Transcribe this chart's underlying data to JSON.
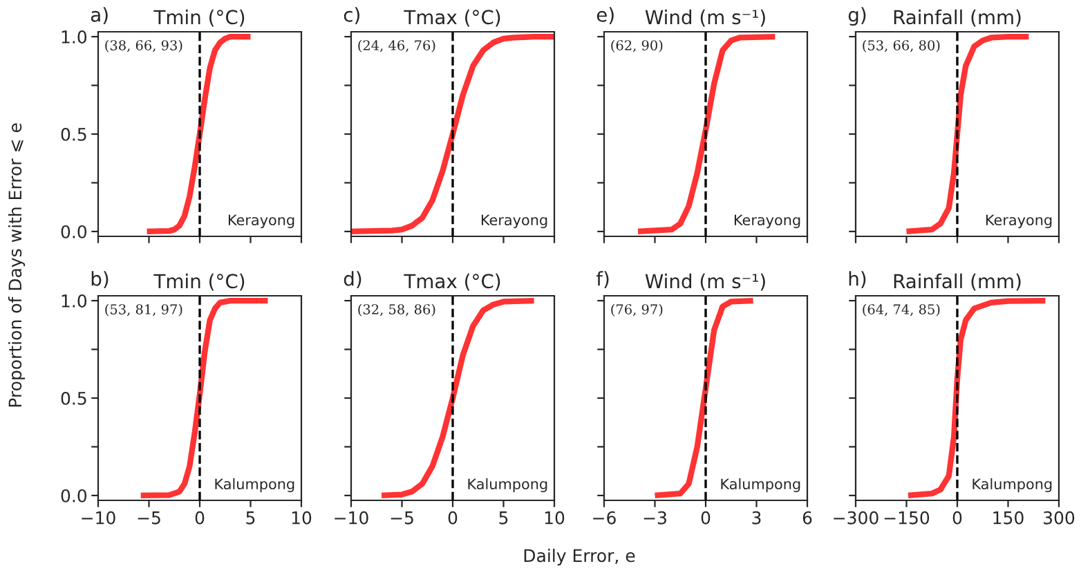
{
  "chart_data": [
    {
      "type": "line",
      "title": "Tmin (°C)",
      "ylabel": "Proportion of Days with Error ⩽ e",
      "annotations": [
        "a)",
        "(38, 66, 93)",
        "Kerayong"
      ],
      "x": [
        -5.2,
        -3,
        -2.5,
        -2,
        -1.5,
        -1,
        -0.5,
        0,
        0.5,
        1,
        1.5,
        2,
        2.5,
        3,
        5
      ],
      "series": [
        {
          "color": "#ff3333",
          "values": [
            0,
            0.003,
            0.01,
            0.03,
            0.08,
            0.18,
            0.33,
            0.5,
            0.68,
            0.84,
            0.93,
            0.97,
            0.99,
            1,
            1
          ]
        }
      ],
      "xlim": [
        -10,
        10
      ],
      "xticks": [
        {
          "value": -10,
          "label": null
        },
        {
          "value": -5,
          "label": null
        },
        {
          "value": 0,
          "label": null
        },
        {
          "value": 5,
          "label": null
        },
        {
          "value": 10,
          "label": null
        }
      ],
      "ylim": [
        -0.025,
        1.025
      ],
      "yticks": [
        {
          "value": 0,
          "label": "0.0"
        },
        {
          "value": 0.25,
          "label": null
        },
        {
          "value": 0.5,
          "label": "0.5"
        },
        {
          "value": 0.75,
          "label": null
        },
        {
          "value": 1,
          "label": "1.0"
        }
      ],
      "ref_lines": [
        {
          "axis": "x",
          "value": 0,
          "color": "#000000",
          "line_style": "dashed"
        }
      ],
      "tick_labels": "y"
    },
    {
      "type": "line",
      "title": "Tmax (°C)",
      "annotations": [
        "c)",
        "(24, 46, 76)",
        "Kerayong"
      ],
      "x": [
        -10,
        -6,
        -5,
        -4,
        -3,
        -2,
        -1,
        0,
        1,
        2,
        3,
        4,
        5,
        6,
        8,
        10
      ],
      "series": [
        {
          "color": "#ff3333",
          "values": [
            0,
            0.005,
            0.01,
            0.03,
            0.07,
            0.16,
            0.31,
            0.5,
            0.7,
            0.85,
            0.93,
            0.97,
            0.99,
            0.995,
            1,
            1
          ]
        }
      ],
      "xlim": [
        -10,
        10
      ],
      "xticks": [
        {
          "value": -10,
          "label": null
        },
        {
          "value": -5,
          "label": null
        },
        {
          "value": 0,
          "label": null
        },
        {
          "value": 5,
          "label": null
        },
        {
          "value": 10,
          "label": null
        }
      ],
      "ylim": [
        -0.025,
        1.025
      ],
      "yticks": [
        {
          "value": 0,
          "label": null
        },
        {
          "value": 0.25,
          "label": null
        },
        {
          "value": 0.5,
          "label": null
        },
        {
          "value": 0.75,
          "label": null
        },
        {
          "value": 1,
          "label": null
        }
      ],
      "ref_lines": [
        {
          "axis": "x",
          "value": 0,
          "color": "#000000",
          "line_style": "dashed"
        }
      ],
      "tick_labels": false
    },
    {
      "type": "line",
      "title": "Wind (m s⁻¹)",
      "annotations": [
        "e)",
        "(62, 90)",
        "Kerayong"
      ],
      "x": [
        -4,
        -2,
        -1.5,
        -1,
        -0.5,
        0,
        0.5,
        1,
        1.5,
        2,
        4.1
      ],
      "series": [
        {
          "color": "#ff3333",
          "values": [
            0,
            0.01,
            0.04,
            0.13,
            0.3,
            0.52,
            0.76,
            0.93,
            0.98,
            0.995,
            1
          ]
        }
      ],
      "xlim": [
        -6,
        6
      ],
      "xticks": [
        {
          "value": -6,
          "label": null
        },
        {
          "value": -3,
          "label": null
        },
        {
          "value": 0,
          "label": null
        },
        {
          "value": 3,
          "label": null
        },
        {
          "value": 6,
          "label": null
        }
      ],
      "ylim": [
        -0.025,
        1.025
      ],
      "yticks": [
        {
          "value": 0,
          "label": null
        },
        {
          "value": 0.25,
          "label": null
        },
        {
          "value": 0.5,
          "label": null
        },
        {
          "value": 0.75,
          "label": null
        },
        {
          "value": 1,
          "label": null
        }
      ],
      "ref_lines": [
        {
          "axis": "x",
          "value": 0,
          "color": "#000000",
          "line_style": "dashed"
        }
      ],
      "tick_labels": false
    },
    {
      "type": "line",
      "title": "Rainfall (mm)",
      "annotations": [
        "g)",
        "(53, 66, 80)",
        "Kerayong"
      ],
      "x": [
        -150,
        -75,
        -50,
        -25,
        -10,
        0,
        10,
        25,
        50,
        75,
        100,
        150,
        211
      ],
      "series": [
        {
          "color": "#ff3333",
          "values": [
            0,
            0.01,
            0.04,
            0.12,
            0.3,
            0.5,
            0.7,
            0.85,
            0.95,
            0.98,
            0.995,
            1,
            1
          ]
        }
      ],
      "xlim": [
        -300,
        300
      ],
      "xticks": [
        {
          "value": -300,
          "label": null
        },
        {
          "value": -150,
          "label": null
        },
        {
          "value": 0,
          "label": null
        },
        {
          "value": 150,
          "label": null
        },
        {
          "value": 300,
          "label": null
        }
      ],
      "ylim": [
        -0.025,
        1.025
      ],
      "yticks": [
        {
          "value": 0,
          "label": null
        },
        {
          "value": 0.25,
          "label": null
        },
        {
          "value": 0.5,
          "label": null
        },
        {
          "value": 0.75,
          "label": null
        },
        {
          "value": 1,
          "label": null
        }
      ],
      "ref_lines": [
        {
          "axis": "x",
          "value": 0,
          "color": "#000000",
          "line_style": "dashed"
        }
      ],
      "tick_labels": false
    },
    {
      "type": "line",
      "title": "Tmin (°C)",
      "annotations": [
        "b)",
        "(53, 81, 97)",
        "Kalumpong"
      ],
      "x": [
        -5.8,
        -3,
        -2,
        -1.5,
        -1,
        -0.5,
        0,
        0.5,
        1,
        1.5,
        2,
        3,
        6.7
      ],
      "series": [
        {
          "color": "#ff3333",
          "values": [
            0,
            0.002,
            0.02,
            0.06,
            0.15,
            0.32,
            0.52,
            0.74,
            0.9,
            0.96,
            0.99,
            1,
            1
          ]
        }
      ],
      "xlim": [
        -10,
        10
      ],
      "xticks": [
        {
          "value": -10,
          "label": "−10"
        },
        {
          "value": -5,
          "label": "−5"
        },
        0,
        5,
        10
      ],
      "ylim": [
        -0.025,
        1.025
      ],
      "yticks": [
        {
          "value": 0,
          "label": "0.0"
        },
        {
          "value": 0.25,
          "label": null
        },
        {
          "value": 0.5,
          "label": "0.5"
        },
        {
          "value": 0.75,
          "label": null
        },
        {
          "value": 1,
          "label": "1.0"
        }
      ],
      "ref_lines": [
        {
          "axis": "x",
          "value": 0,
          "color": "#000000",
          "line_style": "dashed"
        }
      ]
    },
    {
      "type": "line",
      "title": "Tmax (°C)",
      "annotations": [
        "d)",
        "(32, 58, 86)",
        "Kalumpong"
      ],
      "x": [
        -7,
        -5,
        -4,
        -3,
        -2,
        -1,
        0,
        1,
        2,
        3,
        4,
        5,
        8
      ],
      "series": [
        {
          "color": "#ff3333",
          "values": [
            0,
            0.005,
            0.02,
            0.06,
            0.15,
            0.3,
            0.5,
            0.72,
            0.87,
            0.95,
            0.98,
            0.995,
            1
          ]
        }
      ],
      "xlim": [
        -10,
        10
      ],
      "xticks": [
        {
          "value": -10,
          "label": "−10"
        },
        {
          "value": -5,
          "label": "−5"
        },
        0,
        5,
        10
      ],
      "ylim": [
        -0.025,
        1.025
      ],
      "yticks": [
        {
          "value": 0,
          "label": null
        },
        {
          "value": 0.25,
          "label": null
        },
        {
          "value": 0.5,
          "label": null
        },
        {
          "value": 0.75,
          "label": null
        },
        {
          "value": 1,
          "label": null
        }
      ],
      "ref_lines": [
        {
          "axis": "x",
          "value": 0,
          "color": "#000000",
          "line_style": "dashed"
        }
      ],
      "tick_labels": "x"
    },
    {
      "type": "line",
      "title": "Wind (m s⁻¹)",
      "xlabel": "Daily Error, e",
      "annotations": [
        "f)",
        "(76, 97)",
        "Kalumpong"
      ],
      "x": [
        -3,
        -1.5,
        -1,
        -0.5,
        0,
        0.5,
        1,
        1.5,
        2.8
      ],
      "series": [
        {
          "color": "#ff3333",
          "values": [
            0,
            0.01,
            0.06,
            0.25,
            0.55,
            0.85,
            0.97,
            0.995,
            1
          ]
        }
      ],
      "xlim": [
        -6,
        6
      ],
      "xticks": [
        {
          "value": -6,
          "label": "−6"
        },
        {
          "value": -3,
          "label": "−3"
        },
        0,
        3,
        6
      ],
      "ylim": [
        -0.025,
        1.025
      ],
      "yticks": [
        {
          "value": 0,
          "label": null
        },
        {
          "value": 0.25,
          "label": null
        },
        {
          "value": 0.5,
          "label": null
        },
        {
          "value": 0.75,
          "label": null
        },
        {
          "value": 1,
          "label": null
        }
      ],
      "ref_lines": [
        {
          "axis": "x",
          "value": 0,
          "color": "#000000",
          "line_style": "dashed"
        }
      ],
      "tick_labels": "x"
    },
    {
      "type": "line",
      "title": "Rainfall (mm)",
      "annotations": [
        "h)",
        "(64, 74, 85)",
        "Kalumpong"
      ],
      "x": [
        -145,
        -75,
        -50,
        -25,
        -10,
        0,
        10,
        25,
        50,
        100,
        150,
        260
      ],
      "series": [
        {
          "color": "#ff3333",
          "values": [
            0,
            0.01,
            0.03,
            0.1,
            0.3,
            0.6,
            0.8,
            0.9,
            0.96,
            0.99,
            0.998,
            1
          ]
        }
      ],
      "xlim": [
        -300,
        300
      ],
      "xticks": [
        {
          "value": -300,
          "label": "−300"
        },
        {
          "value": -150,
          "label": "−150"
        },
        0,
        150,
        300
      ],
      "ylim": [
        -0.025,
        1.025
      ],
      "yticks": [
        {
          "value": 0,
          "label": null
        },
        {
          "value": 0.25,
          "label": null
        },
        {
          "value": 0.5,
          "label": null
        },
        {
          "value": 0.75,
          "label": null
        },
        {
          "value": 1,
          "label": null
        }
      ],
      "ref_lines": [
        {
          "axis": "x",
          "value": 0,
          "color": "#000000",
          "line_style": "dashed"
        }
      ],
      "tick_labels": "x"
    }
  ]
}
